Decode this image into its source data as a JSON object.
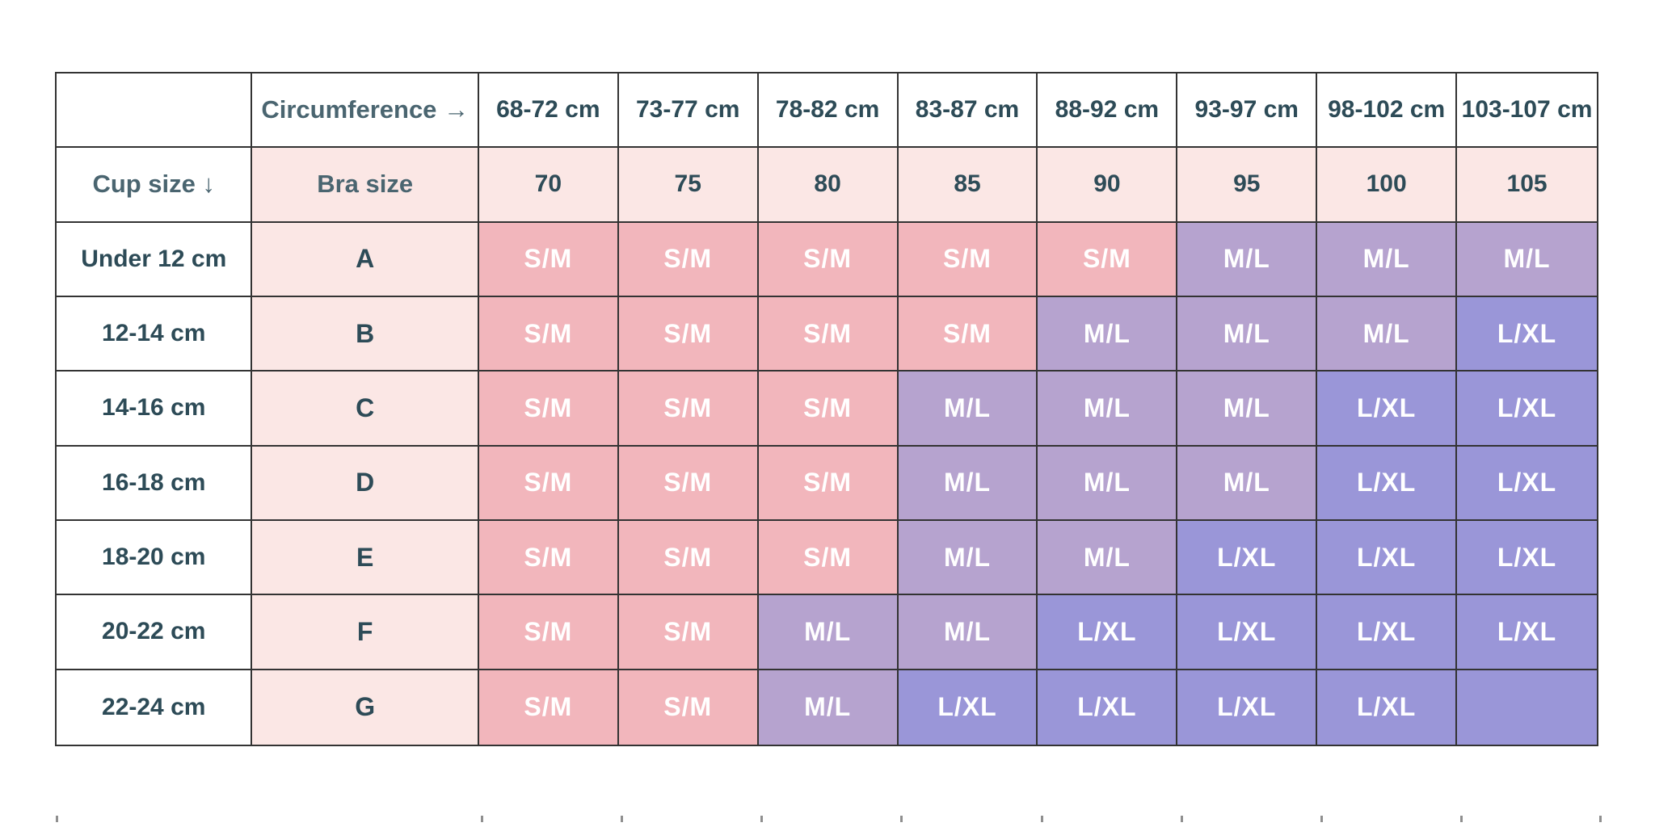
{
  "chart_data": {
    "type": "table",
    "corner_blank": "",
    "corner_header": "Circumference →",
    "row_header": "Cup size ↓",
    "row_subheader_label": "Bra size",
    "columns_circumference_cm": [
      "68-72 cm",
      "73-77 cm",
      "78-82 cm",
      "83-87 cm",
      "88-92 cm",
      "93-97 cm",
      "98-102 cm",
      "103-107 cm"
    ],
    "columns_bra_size": [
      "70",
      "75",
      "80",
      "85",
      "90",
      "95",
      "100",
      "105"
    ],
    "rows": [
      {
        "cup_size": "Under 12 cm",
        "bra_cup": "A",
        "cells": [
          {
            "label": "S/M",
            "tone": "sm"
          },
          {
            "label": "S/M",
            "tone": "sm"
          },
          {
            "label": "S/M",
            "tone": "sm"
          },
          {
            "label": "S/M",
            "tone": "sm"
          },
          {
            "label": "S/M",
            "tone": "sm"
          },
          {
            "label": "M/L",
            "tone": "ml"
          },
          {
            "label": "M/L",
            "tone": "ml"
          },
          {
            "label": "M/L",
            "tone": "ml"
          }
        ]
      },
      {
        "cup_size": "12-14 cm",
        "bra_cup": "B",
        "cells": [
          {
            "label": "S/M",
            "tone": "sm"
          },
          {
            "label": "S/M",
            "tone": "sm"
          },
          {
            "label": "S/M",
            "tone": "sm"
          },
          {
            "label": "S/M",
            "tone": "sm"
          },
          {
            "label": "M/L",
            "tone": "ml"
          },
          {
            "label": "M/L",
            "tone": "ml"
          },
          {
            "label": "M/L",
            "tone": "ml"
          },
          {
            "label": "L/XL",
            "tone": "lxl"
          }
        ]
      },
      {
        "cup_size": "14-16 cm",
        "bra_cup": "C",
        "cells": [
          {
            "label": "S/M",
            "tone": "sm"
          },
          {
            "label": "S/M",
            "tone": "sm"
          },
          {
            "label": "S/M",
            "tone": "sm"
          },
          {
            "label": "M/L",
            "tone": "ml"
          },
          {
            "label": "M/L",
            "tone": "ml"
          },
          {
            "label": "M/L",
            "tone": "ml"
          },
          {
            "label": "L/XL",
            "tone": "lxl"
          },
          {
            "label": "L/XL",
            "tone": "lxl"
          }
        ]
      },
      {
        "cup_size": "16-18 cm",
        "bra_cup": "D",
        "cells": [
          {
            "label": "S/M",
            "tone": "sm"
          },
          {
            "label": "S/M",
            "tone": "sm"
          },
          {
            "label": "S/M",
            "tone": "sm"
          },
          {
            "label": "M/L",
            "tone": "ml"
          },
          {
            "label": "M/L",
            "tone": "ml"
          },
          {
            "label": "M/L",
            "tone": "ml"
          },
          {
            "label": "L/XL",
            "tone": "lxl"
          },
          {
            "label": "L/XL",
            "tone": "lxl"
          }
        ]
      },
      {
        "cup_size": "18-20 cm",
        "bra_cup": "E",
        "cells": [
          {
            "label": "S/M",
            "tone": "sm"
          },
          {
            "label": "S/M",
            "tone": "sm"
          },
          {
            "label": "S/M",
            "tone": "sm"
          },
          {
            "label": "M/L",
            "tone": "ml"
          },
          {
            "label": "M/L",
            "tone": "ml"
          },
          {
            "label": "L/XL",
            "tone": "lxl"
          },
          {
            "label": "L/XL",
            "tone": "lxl"
          },
          {
            "label": "L/XL",
            "tone": "lxl"
          }
        ]
      },
      {
        "cup_size": "20-22 cm",
        "bra_cup": "F",
        "cells": [
          {
            "label": "S/M",
            "tone": "sm"
          },
          {
            "label": "S/M",
            "tone": "sm"
          },
          {
            "label": "M/L",
            "tone": "ml"
          },
          {
            "label": "M/L",
            "tone": "ml"
          },
          {
            "label": "L/XL",
            "tone": "lxl"
          },
          {
            "label": "L/XL",
            "tone": "lxl"
          },
          {
            "label": "L/XL",
            "tone": "lxl"
          },
          {
            "label": "L/XL",
            "tone": "lxl"
          }
        ]
      },
      {
        "cup_size": "22-24 cm",
        "bra_cup": "G",
        "cells": [
          {
            "label": "S/M",
            "tone": "sm"
          },
          {
            "label": "S/M",
            "tone": "sm"
          },
          {
            "label": "M/L",
            "tone": "ml"
          },
          {
            "label": "L/XL",
            "tone": "lxl"
          },
          {
            "label": "L/XL",
            "tone": "lxl"
          },
          {
            "label": "L/XL",
            "tone": "lxl"
          },
          {
            "label": "L/XL",
            "tone": "lxl"
          },
          {
            "label": "",
            "tone": "lxl"
          }
        ]
      }
    ],
    "legend_values": {
      "S/M": "#F2B6BC",
      "M/L": "#B6A3CF",
      "L/XL": "#9A96D8"
    }
  },
  "colors": {
    "cell_sm": "#F2B6BC",
    "cell_ml": "#B6A3CF",
    "cell_lxl": "#9A96D8",
    "light_pink": "#FBE7E5",
    "text_dark": "#2D4B57",
    "text_label": "#4A6570",
    "text_cell": "#FFFFFF",
    "border": "#333333",
    "background": "#FFFFFF"
  },
  "decor": {
    "bottom_tick_xs": [
      69,
      595,
      768,
      941,
      1114,
      1288,
      1461,
      1634,
      1807,
      1979
    ]
  }
}
